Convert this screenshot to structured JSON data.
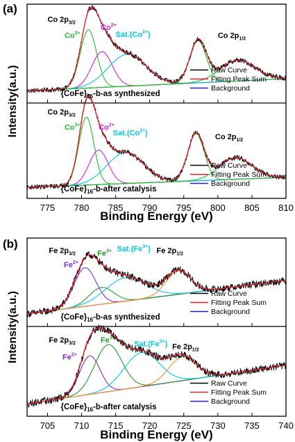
{
  "chart_data": [
    {
      "panel": "(a)",
      "type": "line",
      "xlabel": "Binding Energy (eV)",
      "ylabel": "Intensity(a.u.)",
      "xlim": [
        772,
        810
      ],
      "xticks": [
        "775",
        "780",
        "785",
        "790",
        "795",
        "800",
        "805",
        "810"
      ],
      "legend": [
        "Raw Curve",
        "Fitting Peak Sum",
        "Background"
      ],
      "legend_placement": "bottom-right of each subpanel",
      "colors": {
        "raw": "#000000",
        "sum": "#e8202a",
        "background": "#1f1fd6",
        "peak1": "#1fbf2a",
        "peak2": "#d21fd2",
        "sat": "#00c8e6",
        "peak4": "#1fbf2a"
      },
      "subpanels": [
        {
          "sample": "{CoFe}16-b-as synthesized",
          "sample_main": "{CoFe}",
          "sample_sub": "16",
          "sample_tail": "-b-as synthesized",
          "labels": [
            {
              "main": "Co 2p",
              "sub": "3/2",
              "color": "#000000"
            },
            {
              "main": "Co",
              "sup": "3+",
              "color": "#1fbf2a"
            },
            {
              "main": "Co",
              "sup": "2+",
              "color": "#d21fd2"
            },
            {
              "main": "Sat.(Co",
              "sup": "2+",
              "tail": ")",
              "color": "#00c8e6"
            },
            {
              "main": "Co 2p",
              "sub": "1/2",
              "color": "#000000"
            }
          ],
          "background_ends": [
            0.04,
            0.17
          ],
          "components": [
            {
              "name": "Co3+",
              "center": 781.0,
              "height": 0.62,
              "width": 1.2
            },
            {
              "name": "Co2+",
              "center": 783.0,
              "height": 0.38,
              "width": 1.5
            },
            {
              "name": "Sat.(Co2+)",
              "center": 786.7,
              "height": 0.34,
              "width": 2.8
            },
            {
              "name": "Co 2p1/2 a",
              "center": 797.1,
              "height": 0.45,
              "width": 1.2
            },
            {
              "name": "Co 2p1/2 b",
              "center": 802.9,
              "height": 0.22,
              "width": 2.6
            }
          ]
        },
        {
          "sample": "{CoFe}16-b-after catalysis",
          "sample_main": "{CoFe}",
          "sample_sub": "16",
          "sample_tail": "-b-after catalysis",
          "labels": [
            {
              "main": "Co 2p",
              "sub": "3/2",
              "color": "#000000"
            },
            {
              "main": "Co",
              "sup": "3+",
              "color": "#1fbf2a"
            },
            {
              "main": "Co",
              "sup": "2+",
              "color": "#d21fd2"
            },
            {
              "main": "Sat.(Co",
              "sup": "2+",
              "tail": ")",
              "color": "#00c8e6"
            },
            {
              "main": "Co 2p",
              "sub": "1/2",
              "color": "#000000"
            }
          ],
          "background_ends": [
            0.03,
            0.14
          ],
          "components": [
            {
              "name": "Co3+",
              "center": 780.7,
              "height": 0.75,
              "width": 1.1
            },
            {
              "name": "Co2+",
              "center": 782.5,
              "height": 0.38,
              "width": 1.4
            },
            {
              "name": "Sat.(Co2+)",
              "center": 786.4,
              "height": 0.34,
              "width": 2.7
            },
            {
              "name": "Co 2p1/2 a",
              "center": 796.8,
              "height": 0.52,
              "width": 1.2
            },
            {
              "name": "Co 2p1/2 b",
              "center": 802.6,
              "height": 0.24,
              "width": 2.4
            }
          ]
        }
      ]
    },
    {
      "panel": "(b)",
      "type": "line",
      "xlabel": "Binding Energy (eV)",
      "ylabel": "Intensity(a.u.)",
      "xlim": [
        702,
        740
      ],
      "xticks": [
        "705",
        "710",
        "715",
        "720",
        "725",
        "730",
        "735",
        "740"
      ],
      "legend": [
        "Raw Curve",
        "Fitting Peak Sum",
        "Background"
      ],
      "legend_placement": "bottom-right of each subpanel",
      "colors": {
        "raw": "#000000",
        "sum": "#e8202a",
        "background": "#1f1fd6",
        "peak1": "#7a2fd8",
        "peak2": "#1f9a2a",
        "sat": "#00c8e6",
        "peak4": "#ff8a1e"
      },
      "subpanels": [
        {
          "sample": "{CoFe}16-b-as synthesized",
          "sample_main": "{CoFe}",
          "sample_sub": "16",
          "sample_tail": "-b-as synthesized",
          "labels": [
            {
              "main": "Fe 2p",
              "sub": "3/2",
              "color": "#000000"
            },
            {
              "main": "Fe",
              "sup": "3+",
              "color": "#1f9a2a"
            },
            {
              "main": "Sat.(Fe",
              "sup": "3+",
              "tail": ")",
              "color": "#00c8e6"
            },
            {
              "main": "Fe 2p",
              "sub": "1/2",
              "color": "#000000"
            },
            {
              "main": "Fe",
              "sup": "2+",
              "color": "#7a2fd8"
            }
          ],
          "background_ends": [
            0.05,
            0.45
          ],
          "components": [
            {
              "name": "Fe2+",
              "center": 710.5,
              "height": 0.46,
              "width": 1.6
            },
            {
              "name": "Fe3+",
              "center": 712.9,
              "height": 0.2,
              "width": 1.8
            },
            {
              "name": "Sat.(Fe3+)",
              "center": 716.5,
              "height": 0.28,
              "width": 3.0
            },
            {
              "name": "Fe 2p1/2",
              "center": 724.2,
              "height": 0.28,
              "width": 1.8
            }
          ]
        },
        {
          "sample": "{CoFe}16-b-after catalysis",
          "sample_main": "{CoFe}",
          "sample_sub": "16",
          "sample_tail": "-b-after catalysis",
          "labels": [
            {
              "main": "Fe 2p",
              "sub": "3/2",
              "color": "#000000"
            },
            {
              "main": "Fe",
              "sup": "3+",
              "color": "#1f9a2a"
            },
            {
              "main": "Sat.(Fe",
              "sup": "3+",
              "tail": ")",
              "color": "#00c8e6"
            },
            {
              "main": "Fe 2p",
              "sub": "1/2",
              "color": "#000000"
            },
            {
              "main": "Fe",
              "sup": "2+",
              "color": "#7a2fd8"
            }
          ],
          "background_ends": [
            0.05,
            0.5
          ],
          "components": [
            {
              "name": "Fe2+",
              "center": 711.2,
              "height": 0.45,
              "width": 1.5
            },
            {
              "name": "Fe3+",
              "center": 713.9,
              "height": 0.55,
              "width": 2.0
            },
            {
              "name": "Sat.(Fe3+)",
              "center": 718.8,
              "height": 0.4,
              "width": 2.6
            },
            {
              "name": "Fe 2p1/2",
              "center": 724.8,
              "height": 0.28,
              "width": 2.0
            }
          ]
        }
      ]
    }
  ]
}
